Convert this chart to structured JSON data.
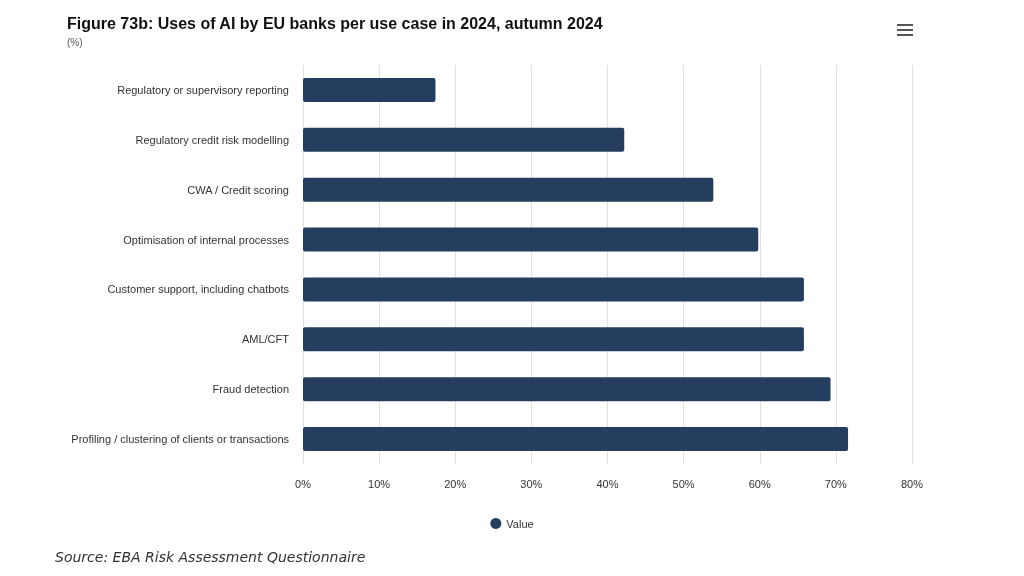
{
  "chart_data": {
    "type": "bar",
    "orientation": "horizontal",
    "title": "Figure 73b: Uses of AI by EU banks per use case in 2024, autumn 2024",
    "subtitle": "(%)",
    "categories": [
      "Regulatory or supervisory reporting",
      "Regulatory credit risk modelling",
      "CWA / Credit scoring",
      "Optimisation of internal processes",
      "Customer support, including chatbots",
      "AML/CFT",
      "Fraud detection",
      "Profiling / clustering of clients or transactions"
    ],
    "series": [
      {
        "name": "Value",
        "color": "#253d5f",
        "values": [
          17.4,
          42.2,
          53.9,
          59.8,
          65.8,
          65.8,
          69.3,
          71.6
        ]
      }
    ],
    "xlim": [
      0,
      80
    ],
    "xticks": [
      {
        "value": 0,
        "label": "0%"
      },
      {
        "value": 10,
        "label": "10%"
      },
      {
        "value": 20,
        "label": "20%"
      },
      {
        "value": 30,
        "label": "30%"
      },
      {
        "value": 40,
        "label": "40%"
      },
      {
        "value": 50,
        "label": "50%"
      },
      {
        "value": 60,
        "label": "60%"
      },
      {
        "value": 70,
        "label": "70%"
      },
      {
        "value": 80,
        "label": "80%"
      }
    ],
    "grid": "x",
    "legend": "bottom",
    "annotations": [
      "Source: EBA Risk Assessment Questionnaire"
    ]
  }
}
